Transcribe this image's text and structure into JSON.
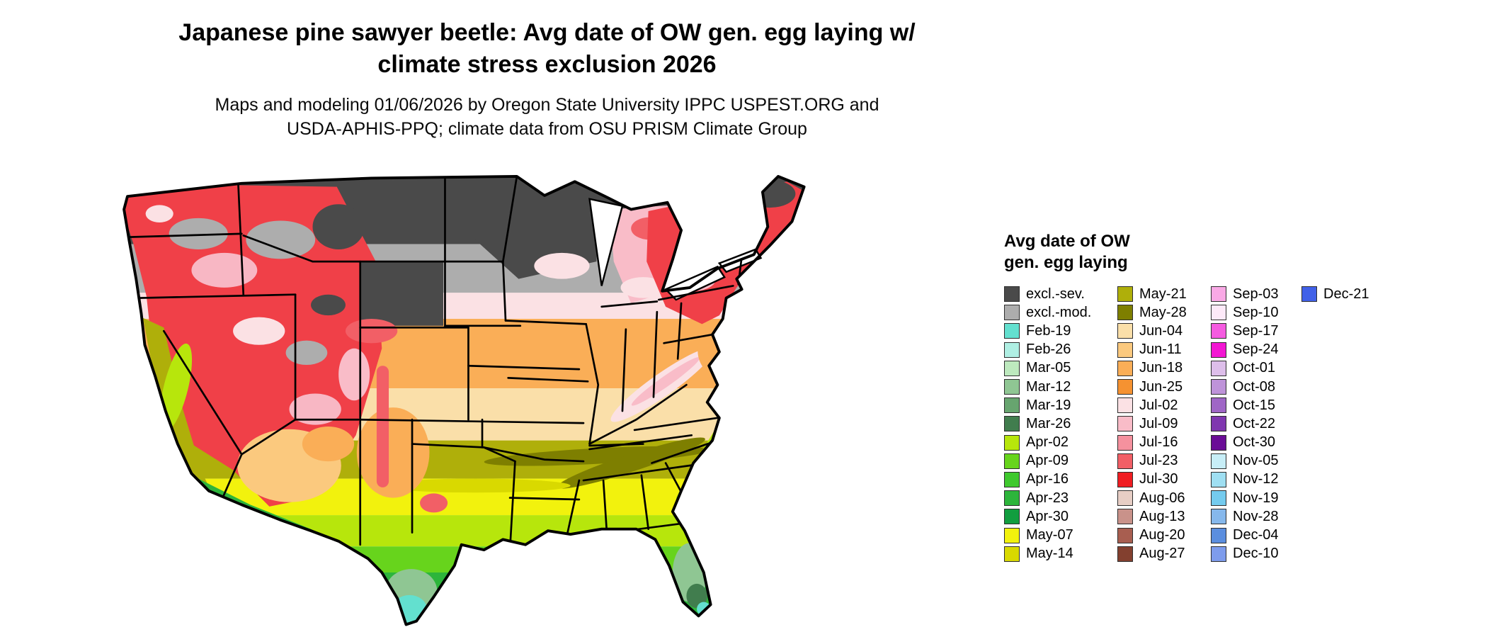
{
  "header": {
    "title_line1": "Japanese pine sawyer beetle: Avg date of OW gen. egg laying w/",
    "title_line2": "climate stress exclusion 2026",
    "subtitle_line1": "Maps and modeling 01/06/2026 by Oregon State University IPPC USPEST.ORG and",
    "subtitle_line2": "USDA-APHIS-PPQ; climate data from OSU PRISM Climate Group"
  },
  "map": {
    "region": "Continental United States",
    "background_color": "#FFFFFF",
    "boundary_color": "#000000"
  },
  "legend": {
    "title_line1": "Avg date of OW",
    "title_line2": "gen. egg laying",
    "columns": [
      [
        {
          "label": "excl.-sev.",
          "color": "#4A4A4A"
        },
        {
          "label": "excl.-mod.",
          "color": "#ADADAD"
        },
        {
          "label": "Feb-19",
          "color": "#63E0CF"
        },
        {
          "label": "Feb-26",
          "color": "#AFEFE3"
        },
        {
          "label": "Mar-05",
          "color": "#BDE9BE"
        },
        {
          "label": "Mar-12",
          "color": "#8FC693"
        },
        {
          "label": "Mar-19",
          "color": "#67A56F"
        },
        {
          "label": "Mar-26",
          "color": "#417D4E"
        },
        {
          "label": "Apr-02",
          "color": "#B7E60C"
        },
        {
          "label": "Apr-09",
          "color": "#67D41C"
        },
        {
          "label": "Apr-16",
          "color": "#3FC92E"
        },
        {
          "label": "Apr-23",
          "color": "#2DB53B"
        },
        {
          "label": "Apr-30",
          "color": "#119E3F"
        },
        {
          "label": "May-07",
          "color": "#F2F20D"
        },
        {
          "label": "May-14",
          "color": "#D9D900"
        }
      ],
      [
        {
          "label": "May-21",
          "color": "#AFAF0A"
        },
        {
          "label": "May-28",
          "color": "#7E7F00"
        },
        {
          "label": "Jun-04",
          "color": "#FADFA9"
        },
        {
          "label": "Jun-11",
          "color": "#FBC97E"
        },
        {
          "label": "Jun-18",
          "color": "#FAAE57"
        },
        {
          "label": "Jun-25",
          "color": "#F59231"
        },
        {
          "label": "Jul-02",
          "color": "#FBE1E4"
        },
        {
          "label": "Jul-09",
          "color": "#F9BCC8"
        },
        {
          "label": "Jul-16",
          "color": "#F5919E"
        },
        {
          "label": "Jul-23",
          "color": "#F25F66"
        },
        {
          "label": "Jul-30",
          "color": "#F01D22"
        },
        {
          "label": "Aug-06",
          "color": "#E7CEC5"
        },
        {
          "label": "Aug-13",
          "color": "#C9928A"
        },
        {
          "label": "Aug-20",
          "color": "#A85E50"
        },
        {
          "label": "Aug-27",
          "color": "#83402F"
        }
      ],
      [
        {
          "label": "Sep-03",
          "color": "#F9A9E5"
        },
        {
          "label": "Sep-10",
          "color": "#FDE9F8"
        },
        {
          "label": "Sep-17",
          "color": "#F55BE0"
        },
        {
          "label": "Sep-24",
          "color": "#F316D3"
        },
        {
          "label": "Oct-01",
          "color": "#DDBEEA"
        },
        {
          "label": "Oct-08",
          "color": "#BE93D9"
        },
        {
          "label": "Oct-15",
          "color": "#9F66C6"
        },
        {
          "label": "Oct-22",
          "color": "#7F37AF"
        },
        {
          "label": "Oct-30",
          "color": "#6A0D96"
        },
        {
          "label": "Nov-05",
          "color": "#C7EEF7"
        },
        {
          "label": "Nov-12",
          "color": "#9FDFF2"
        },
        {
          "label": "Nov-19",
          "color": "#74CBEE"
        },
        {
          "label": "Nov-28",
          "color": "#86B8EC"
        },
        {
          "label": "Dec-04",
          "color": "#5B8EDF"
        },
        {
          "label": "Dec-10",
          "color": "#7E9CEC"
        }
      ],
      [
        {
          "label": "Dec-21",
          "color": "#4161E8"
        }
      ]
    ]
  }
}
